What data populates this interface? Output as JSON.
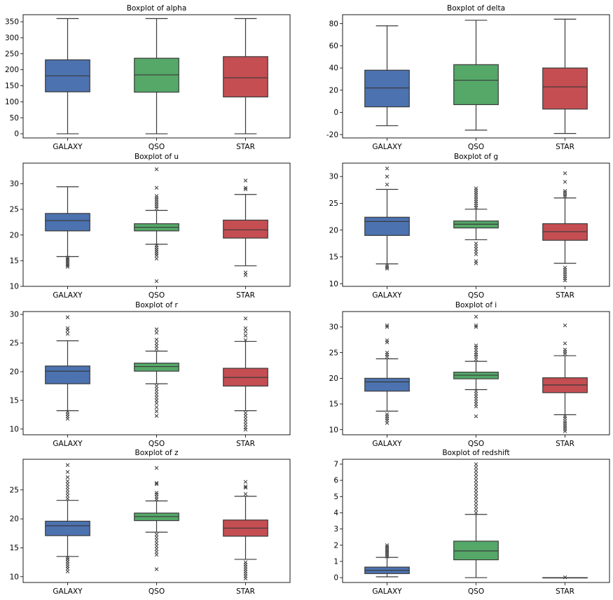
{
  "colors": {
    "GALAXY": "#4c72b0",
    "QSO": "#55a868",
    "STAR": "#c44e52"
  },
  "chart_data": [
    {
      "type": "boxplot",
      "title": "Boxplot of alpha",
      "categories": [
        "GALAXY",
        "QSO",
        "STAR"
      ],
      "ylim": [
        -13,
        372
      ],
      "yticks": [
        0,
        50,
        100,
        150,
        200,
        250,
        300,
        350
      ],
      "boxes": [
        {
          "q1": 131,
          "median": 181,
          "q3": 231,
          "whislo": 0,
          "whishi": 360,
          "fliers": []
        },
        {
          "q1": 130,
          "median": 184,
          "q3": 236,
          "whislo": 0,
          "whishi": 360,
          "fliers": []
        },
        {
          "q1": 115,
          "median": 175,
          "q3": 241,
          "whislo": 0,
          "whishi": 360,
          "fliers": []
        }
      ]
    },
    {
      "type": "boxplot",
      "title": "Boxplot of delta",
      "categories": [
        "GALAXY",
        "QSO",
        "STAR"
      ],
      "ylim": [
        -23,
        88
      ],
      "yticks": [
        -20,
        0,
        20,
        40,
        60,
        80
      ],
      "boxes": [
        {
          "q1": 5,
          "median": 22,
          "q3": 38,
          "whislo": -12,
          "whishi": 78,
          "fliers": []
        },
        {
          "q1": 7,
          "median": 29,
          "q3": 43,
          "whislo": -16,
          "whishi": 83,
          "fliers": []
        },
        {
          "q1": 3,
          "median": 23,
          "q3": 40,
          "whislo": -19,
          "whishi": 84,
          "fliers": []
        }
      ]
    },
    {
      "type": "boxplot",
      "title": "Boxplot of u",
      "categories": [
        "GALAXY",
        "QSO",
        "STAR"
      ],
      "ylim": [
        10,
        34
      ],
      "yticks": [
        10,
        15,
        20,
        25,
        30
      ],
      "boxes": [
        {
          "q1": 20.8,
          "median": 22.8,
          "q3": 24.2,
          "whislo": 15.8,
          "whishi": 29.4,
          "fliers": [
            13.8,
            14.1,
            14.4,
            14.7,
            15.0,
            15.3,
            15.6
          ]
        },
        {
          "q1": 20.8,
          "median": 21.5,
          "q3": 22.2,
          "whislo": 18.2,
          "whishi": 24.8,
          "fliers": [
            11.0,
            15.4,
            16.0,
            16.4,
            16.8,
            17.2,
            17.6,
            18.0,
            25.2,
            25.6,
            26.0,
            26.4,
            26.8,
            27.2,
            27.6,
            29.2,
            32.8
          ]
        },
        {
          "q1": 19.4,
          "median": 21.0,
          "q3": 22.9,
          "whislo": 14.0,
          "whishi": 27.9,
          "fliers": [
            12.2,
            12.7,
            28.9,
            29.2,
            30.6
          ]
        }
      ]
    },
    {
      "type": "boxplot",
      "title": "Boxplot of g",
      "categories": [
        "GALAXY",
        "QSO",
        "STAR"
      ],
      "ylim": [
        9.5,
        32.5
      ],
      "yticks": [
        10,
        15,
        20,
        25,
        30
      ],
      "boxes": [
        {
          "q1": 19.0,
          "median": 21.6,
          "q3": 22.4,
          "whislo": 13.7,
          "whishi": 27.6,
          "fliers": [
            12.8,
            13.1,
            13.4,
            28.5,
            30.0,
            31.5
          ]
        },
        {
          "q1": 20.4,
          "median": 21.1,
          "q3": 21.7,
          "whislo": 18.2,
          "whishi": 23.9,
          "fliers": [
            13.8,
            14.2,
            15.5,
            16.0,
            16.5,
            17.0,
            17.5,
            24.2,
            24.6,
            25.0,
            25.4,
            25.8,
            26.2,
            26.6,
            27.0,
            27.4,
            27.8
          ]
        },
        {
          "q1": 18.1,
          "median": 19.7,
          "q3": 21.2,
          "whislo": 13.8,
          "whishi": 26.0,
          "fliers": [
            10.6,
            11.0,
            11.4,
            11.8,
            12.2,
            12.6,
            13.0,
            26.3,
            26.6,
            27.0,
            27.3,
            29.0,
            30.6
          ]
        }
      ]
    },
    {
      "type": "boxplot",
      "title": "Boxplot of r",
      "categories": [
        "GALAXY",
        "QSO",
        "STAR"
      ],
      "ylim": [
        9,
        30.5
      ],
      "yticks": [
        10,
        15,
        20,
        25,
        30
      ],
      "boxes": [
        {
          "q1": 17.9,
          "median": 20.1,
          "q3": 21.0,
          "whislo": 13.2,
          "whishi": 25.4,
          "fliers": [
            11.8,
            12.2,
            12.6,
            13.0,
            26.6,
            27.2,
            27.6,
            29.5
          ]
        },
        {
          "q1": 20.1,
          "median": 20.9,
          "q3": 21.5,
          "whislo": 17.9,
          "whishi": 23.6,
          "fliers": [
            12.3,
            13.1,
            13.8,
            14.5,
            15.0,
            15.5,
            16.0,
            16.5,
            17.0,
            17.5,
            24.0,
            24.5,
            25.0,
            25.6,
            26.8,
            27.4
          ]
        },
        {
          "q1": 17.5,
          "median": 19.0,
          "q3": 20.6,
          "whislo": 13.2,
          "whishi": 25.3,
          "fliers": [
            9.9,
            10.3,
            10.8,
            11.3,
            11.8,
            12.3,
            12.8,
            25.5,
            26.3,
            27.0,
            27.6,
            29.3
          ]
        }
      ]
    },
    {
      "type": "boxplot",
      "title": "Boxplot of i",
      "categories": [
        "GALAXY",
        "QSO",
        "STAR"
      ],
      "ylim": [
        9,
        33
      ],
      "yticks": [
        10,
        15,
        20,
        25,
        30
      ],
      "boxes": [
        {
          "q1": 17.5,
          "median": 19.3,
          "q3": 20.0,
          "whislo": 13.6,
          "whishi": 23.8,
          "fliers": [
            11.3,
            11.8,
            12.2,
            12.6,
            13.0,
            24.2,
            24.6,
            25.0,
            27.0,
            27.4,
            30.0,
            30.3
          ]
        },
        {
          "q1": 19.9,
          "median": 20.6,
          "q3": 21.2,
          "whislo": 17.8,
          "whishi": 23.3,
          "fliers": [
            12.6,
            14.5,
            15.0,
            15.5,
            16.0,
            16.5,
            17.0,
            17.5,
            23.7,
            24.2,
            24.6,
            25.0,
            25.5,
            26.0,
            26.4,
            30.0,
            30.3,
            32.0
          ]
        },
        {
          "q1": 17.2,
          "median": 18.7,
          "q3": 20.1,
          "whislo": 12.9,
          "whishi": 24.4,
          "fliers": [
            9.7,
            10.1,
            10.5,
            10.9,
            11.3,
            11.7,
            12.2,
            12.6,
            24.8,
            25.2,
            25.6,
            26.8,
            30.3
          ]
        }
      ]
    },
    {
      "type": "boxplot",
      "title": "Boxplot of z",
      "categories": [
        "GALAXY",
        "QSO",
        "STAR"
      ],
      "ylim": [
        9,
        30.3
      ],
      "yticks": [
        10,
        15,
        20,
        25
      ],
      "boxes": [
        {
          "q1": 17.1,
          "median": 18.8,
          "q3": 19.6,
          "whislo": 13.5,
          "whishi": 23.2,
          "fliers": [
            10.9,
            11.4,
            11.8,
            12.2,
            12.6,
            13.0,
            13.3,
            23.5,
            24.0,
            24.5,
            25.0,
            25.5,
            26.0,
            26.5,
            27.2,
            28.1,
            29.3
          ]
        },
        {
          "q1": 19.7,
          "median": 20.4,
          "q3": 21.0,
          "whislo": 17.7,
          "whishi": 23.1,
          "fliers": [
            11.3,
            13.8,
            14.3,
            14.8,
            15.3,
            15.8,
            16.3,
            16.8,
            17.3,
            23.4,
            23.8,
            24.2,
            24.5,
            26.0,
            26.2,
            28.8
          ]
        },
        {
          "q1": 17.0,
          "median": 18.4,
          "q3": 19.8,
          "whislo": 13.0,
          "whishi": 23.9,
          "fliers": [
            9.7,
            10.1,
            10.5,
            10.9,
            11.3,
            11.7,
            12.1,
            12.5,
            24.3,
            25.4,
            25.6,
            26.4
          ]
        }
      ]
    },
    {
      "type": "boxplot",
      "title": "Boxplot of redshift",
      "categories": [
        "GALAXY",
        "QSO",
        "STAR"
      ],
      "ylim": [
        -0.3,
        7.3
      ],
      "yticks": [
        0,
        1,
        2,
        3,
        4,
        5,
        6,
        7
      ],
      "boxes": [
        {
          "q1": 0.25,
          "median": 0.45,
          "q3": 0.65,
          "whislo": 0.05,
          "whishi": 1.25,
          "fliers": [
            1.3,
            1.4,
            1.5,
            1.6,
            1.7,
            1.8,
            1.9,
            2.0
          ]
        },
        {
          "q1": 1.1,
          "median": 1.65,
          "q3": 2.25,
          "whislo": 0.0,
          "whishi": 3.9,
          "fliers": [
            4.0,
            4.2,
            4.4,
            4.6,
            4.8,
            5.0,
            5.2,
            5.4,
            5.6,
            5.8,
            6.0,
            6.2,
            6.4,
            6.6,
            6.8,
            7.0
          ]
        },
        {
          "q1": 0.0,
          "median": 0.0,
          "q3": 0.0,
          "whislo": 0.0,
          "whishi": 0.0,
          "fliers": [
            0.02
          ]
        }
      ]
    }
  ]
}
